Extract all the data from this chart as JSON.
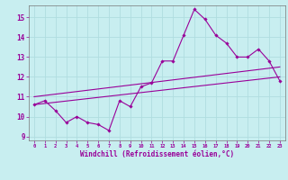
{
  "xlabel": "Windchill (Refroidissement éolien,°C)",
  "bg_color": "#c8eef0",
  "line_color": "#990099",
  "grid_color": "#b0dde0",
  "x_data": [
    0,
    1,
    2,
    3,
    4,
    5,
    6,
    7,
    8,
    9,
    10,
    11,
    12,
    13,
    14,
    15,
    16,
    17,
    18,
    19,
    20,
    21,
    22,
    23
  ],
  "y_main": [
    10.6,
    10.8,
    10.3,
    9.7,
    10.0,
    9.7,
    9.6,
    9.3,
    10.8,
    10.5,
    11.5,
    11.7,
    12.8,
    12.8,
    14.1,
    15.4,
    14.9,
    14.1,
    13.7,
    13.0,
    13.0,
    13.4,
    12.8,
    11.8
  ],
  "y_reg1_start": 10.6,
  "y_reg1_end": 12.0,
  "y_reg2_start": 11.0,
  "y_reg2_end": 12.5,
  "ylim": [
    8.8,
    15.6
  ],
  "xlim": [
    -0.5,
    23.5
  ],
  "yticks": [
    9,
    10,
    11,
    12,
    13,
    14,
    15
  ],
  "xticks": [
    0,
    1,
    2,
    3,
    4,
    5,
    6,
    7,
    8,
    9,
    10,
    11,
    12,
    13,
    14,
    15,
    16,
    17,
    18,
    19,
    20,
    21,
    22,
    23
  ],
  "xtick_labels": [
    "0",
    "1",
    "2",
    "3",
    "4",
    "5",
    "6",
    "7",
    "8",
    "9",
    "10",
    "11",
    "12",
    "13",
    "14",
    "15",
    "16",
    "17",
    "18",
    "19",
    "20",
    "21",
    "22",
    "23"
  ]
}
